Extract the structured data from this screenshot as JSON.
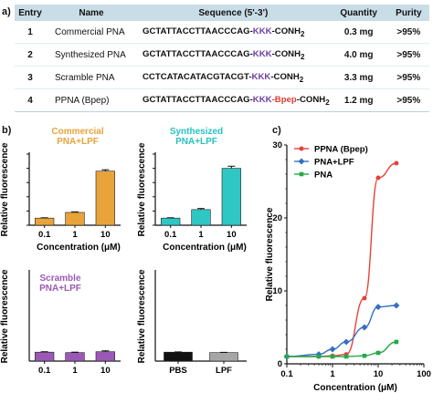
{
  "panel_labels": {
    "a": "a)",
    "b": "b)",
    "c": "c)"
  },
  "table": {
    "headers": [
      "Entry",
      "Name",
      "Sequence (5'-3')",
      "Quantity",
      "Purity"
    ],
    "rows": [
      {
        "entry": "1",
        "name": "Commercial PNA",
        "seq_main": "GCTATTACCTTAACCCAG-",
        "seq_kkk": "KKK",
        "seq_bpep": "",
        "seq_end": "-CONH",
        "seq_sub": "2",
        "quantity": "0.3 mg",
        "purity": ">95%"
      },
      {
        "entry": "2",
        "name": "Synthesized PNA",
        "seq_main": "GCTATTACCTTAACCCAG-",
        "seq_kkk": "KKK",
        "seq_bpep": "",
        "seq_end": "-CONH",
        "seq_sub": "2",
        "quantity": "4.0 mg",
        "purity": ">95%"
      },
      {
        "entry": "3",
        "name": "Scramble PNA",
        "seq_main": "CCTCATACATACGTACGT-",
        "seq_kkk": "KKK",
        "seq_bpep": "",
        "seq_end": "-CONH",
        "seq_sub": "2",
        "quantity": "3.3 mg",
        "purity": ">95%"
      },
      {
        "entry": "4",
        "name": "PPNA (Bpep)",
        "seq_main": "GCTATTACCTTAACCCAG-",
        "seq_kkk": "KKK",
        "seq_bpep": "-Bpep",
        "seq_end": "-CONH",
        "seq_sub": "2",
        "quantity": "1.2 mg",
        "purity": ">95%"
      }
    ]
  },
  "chart_data": [
    {
      "type": "bar",
      "title": "Commercial PNA+LPF",
      "title_lines": [
        "Commercial",
        "PNA+LPF"
      ],
      "title_color": "#e8a33a",
      "categories": [
        "0.1",
        "1",
        "10"
      ],
      "values": [
        1.0,
        1.8,
        7.6
      ],
      "errors": [
        0.05,
        0.08,
        0.2
      ],
      "ylim": [
        0,
        10
      ],
      "ylabel": "Relative fluorescence",
      "xlabel": "Concentration (μM)",
      "bar_color": "#e8a33a",
      "has_ticks": true
    },
    {
      "type": "bar",
      "title": "Synthesized PNA+LPF",
      "title_lines": [
        "Synthesized",
        "PNA+LPF"
      ],
      "title_color": "#26c2c0",
      "categories": [
        "0.1",
        "1",
        "10"
      ],
      "values": [
        1.0,
        2.2,
        8.0
      ],
      "errors": [
        0.05,
        0.15,
        0.3
      ],
      "ylim": [
        0,
        10
      ],
      "ylabel": "Relative fluorescence",
      "xlabel": "Concentration (μM)",
      "bar_color": "#2fc7c4",
      "has_ticks": true
    },
    {
      "type": "bar",
      "title": "Scramble PNA+LPF",
      "title_lines": [
        "Scramble",
        "PNA+LPF"
      ],
      "title_color": "#9b59b6",
      "categories": [
        "0.1",
        "1",
        "10"
      ],
      "values": [
        1.0,
        0.95,
        1.05
      ],
      "errors": [
        0.05,
        0.05,
        0.1
      ],
      "ylim": [
        0,
        10
      ],
      "ylabel": "Relative fluorescence",
      "xlabel": "",
      "bar_color": "#9b59b6",
      "has_ticks": false
    },
    {
      "type": "bar",
      "title": "",
      "title_lines": [],
      "title_color": "#111111",
      "categories": [
        "PBS",
        "LPF"
      ],
      "values": [
        1.0,
        0.95
      ],
      "errors": [
        0.03,
        0.03
      ],
      "ylim": [
        0,
        10
      ],
      "ylabel": "Relative fluorescence",
      "xlabel": "",
      "bar_colors": [
        "#111111",
        "#a6a6a6"
      ],
      "has_ticks": false
    },
    {
      "type": "line",
      "xscale": "log",
      "xlim": [
        0.1,
        100
      ],
      "ylim": [
        0,
        30
      ],
      "xticks": [
        "0.1",
        "1",
        "10",
        "100"
      ],
      "yticks": [
        "0",
        "10",
        "20",
        "30"
      ],
      "xlabel": "Concentration (μM)",
      "ylabel": "Relative fluorescence",
      "legend": "top-left",
      "series": [
        {
          "name": "PPNA (Bpep)",
          "color": "#e8403a",
          "x": [
            0.1,
            0.5,
            1,
            2,
            5,
            10,
            25
          ],
          "y": [
            1.0,
            1.0,
            1.1,
            1.3,
            9.0,
            25.5,
            27.5
          ]
        },
        {
          "name": "PNA+LPF",
          "color": "#3470c4",
          "x": [
            0.1,
            0.5,
            1,
            2,
            5,
            10,
            25
          ],
          "y": [
            1.0,
            1.3,
            2.0,
            3.0,
            5.0,
            7.8,
            8.0
          ]
        },
        {
          "name": "PNA",
          "color": "#27a84a",
          "x": [
            0.1,
            0.5,
            1,
            2,
            5,
            10,
            25
          ],
          "y": [
            1.0,
            1.0,
            1.0,
            1.0,
            1.1,
            1.5,
            3.0
          ]
        }
      ]
    }
  ]
}
